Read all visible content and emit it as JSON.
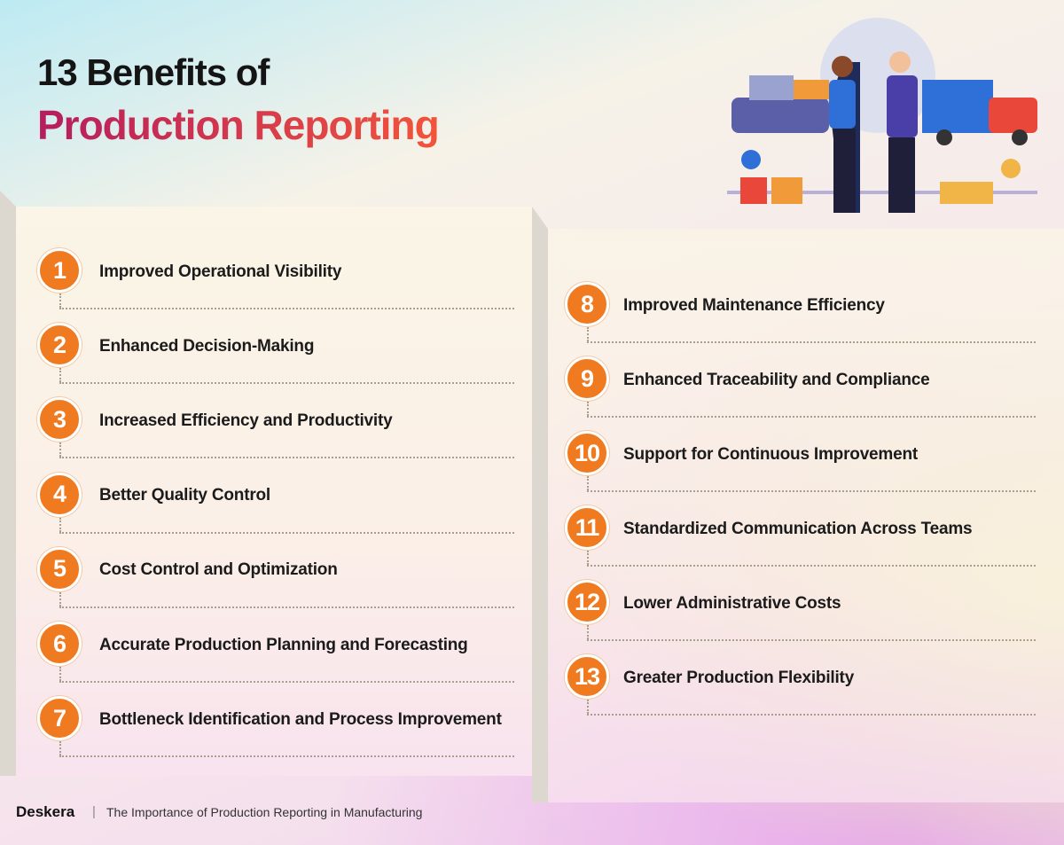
{
  "header": {
    "title_line1": "13 Benefits of",
    "title_line2": "Production Reporting"
  },
  "columns": [
    [
      {
        "number": 1,
        "text": "Improved Operational Visibility"
      },
      {
        "number": 2,
        "text": "Enhanced Decision-Making"
      },
      {
        "number": 3,
        "text": "Increased Efficiency and Productivity"
      },
      {
        "number": 4,
        "text": "Better Quality Control"
      },
      {
        "number": 5,
        "text": "Cost Control and Optimization"
      },
      {
        "number": 6,
        "text": "Accurate Production Planning and Forecasting"
      },
      {
        "number": 7,
        "text": "Bottleneck Identification and Process Improvement"
      }
    ],
    [
      {
        "number": 8,
        "text": "Improved Maintenance Efficiency"
      },
      {
        "number": 9,
        "text": "Enhanced Traceability and Compliance"
      },
      {
        "number": 10,
        "text": "Support for Continuous Improvement"
      },
      {
        "number": 11,
        "text": "Standardized Communication Across Teams"
      },
      {
        "number": 12,
        "text": "Lower Administrative Costs"
      },
      {
        "number": 13,
        "text": "Greater Production Flexibility"
      }
    ]
  ],
  "footer": {
    "brand": "Deskera",
    "caption": "The Importance of Production Reporting in Manufacturing"
  }
}
